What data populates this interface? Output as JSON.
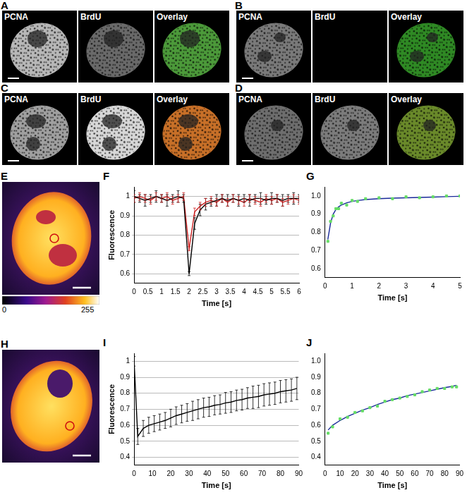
{
  "image_panels": [
    {
      "label": "A",
      "channels": [
        "PCNA",
        "BrdU",
        "Overlay"
      ]
    },
    {
      "label": "B",
      "channels": [
        "PCNA",
        "BrdU",
        "Overlay"
      ]
    },
    {
      "label": "C",
      "channels": [
        "PCNA",
        "BrdU",
        "Overlay"
      ]
    },
    {
      "label": "D",
      "channels": [
        "PCNA",
        "BrdU",
        "Overlay"
      ]
    }
  ],
  "fire_panels": [
    {
      "label": "E"
    },
    {
      "label": "H"
    }
  ],
  "colorbar": {
    "ticks": [
      0,
      255
    ]
  },
  "chart_data": [
    {
      "label": "F",
      "type": "line",
      "xlabel": "Time [s]",
      "ylabel": "Fluorescence",
      "xlim": [
        0,
        6
      ],
      "xticks": [
        0,
        0.5,
        1,
        1.5,
        2,
        2.5,
        3,
        3.5,
        4,
        4.5,
        5,
        5.5,
        6
      ],
      "ylim": [
        0.55,
        1.05
      ],
      "yticks": [
        0.6,
        0.7,
        0.8,
        0.9,
        1
      ],
      "grid": true,
      "x": [
        0,
        0.2,
        0.4,
        0.6,
        0.8,
        1,
        1.2,
        1.4,
        1.6,
        1.8,
        2,
        2.2,
        2.4,
        2.6,
        2.8,
        3,
        3.2,
        3.4,
        3.6,
        3.8,
        4,
        4.2,
        4.4,
        4.6,
        4.8,
        5,
        5.2,
        5.4,
        5.6,
        5.8,
        6
      ],
      "series": [
        {
          "color": "#000000",
          "values": [
            1.0,
            0.99,
            0.98,
            0.99,
            1.0,
            0.99,
            0.98,
            0.99,
            1.0,
            0.99,
            0.6,
            0.86,
            0.93,
            0.96,
            0.97,
            0.98,
            0.99,
            0.98,
            0.99,
            0.98,
            0.99,
            0.98,
            0.99,
            0.99,
            0.98,
            0.99,
            0.99,
            0.98,
            0.99,
            0.99,
            0.99
          ],
          "errors": [
            0.03,
            0.02,
            0.03,
            0.02,
            0.03,
            0.02,
            0.03,
            0.02,
            0.03,
            0.02,
            0.01,
            0.03,
            0.03,
            0.03,
            0.02,
            0.03,
            0.02,
            0.03,
            0.02,
            0.03,
            0.02,
            0.03,
            0.02,
            0.03,
            0.02,
            0.03,
            0.02,
            0.03,
            0.02,
            0.03,
            0.02
          ]
        },
        {
          "color": "#cc2222",
          "values": [
            0.99,
            1.0,
            0.99,
            0.98,
            1.0,
            0.99,
            1.0,
            0.98,
            0.99,
            1.0,
            0.73,
            0.92,
            0.95,
            0.97,
            0.98,
            0.97,
            0.99,
            0.97,
            0.99,
            0.98,
            0.97,
            0.99,
            0.98,
            0.97,
            0.99,
            0.98,
            0.99,
            0.97,
            0.98,
            0.99,
            0.98
          ],
          "errors": [
            0.02,
            0.02,
            0.02,
            0.02,
            0.02,
            0.02,
            0.02,
            0.02,
            0.02,
            0.02,
            0.01,
            0.02,
            0.02,
            0.02,
            0.02,
            0.02,
            0.02,
            0.02,
            0.02,
            0.02,
            0.02,
            0.02,
            0.02,
            0.02,
            0.02,
            0.02,
            0.02,
            0.02,
            0.02,
            0.02,
            0.02
          ]
        }
      ]
    },
    {
      "label": "G",
      "type": "scatter",
      "xlabel": "Time [s]",
      "xlim": [
        0,
        5
      ],
      "xticks": [
        0,
        1,
        2,
        3,
        4,
        5
      ],
      "ylim": [
        0.55,
        1.05
      ],
      "yticks": [
        0.6,
        0.7,
        0.8,
        0.9,
        {
          "value": 1,
          "label": "1.0"
        }
      ],
      "grid": false,
      "x": [
        0.1,
        0.2,
        0.3,
        0.4,
        0.5,
        0.6,
        0.8,
        1.0,
        1.2,
        1.5,
        2,
        2.5,
        3,
        3.5,
        4,
        4.5,
        5
      ],
      "series": [
        {
          "type": "scatter",
          "color": "#66dd66",
          "values": [
            0.75,
            0.86,
            0.89,
            0.93,
            0.93,
            0.96,
            0.95,
            0.975,
            0.97,
            0.985,
            0.99,
            0.985,
            0.995,
            0.99,
            0.995,
            1.0,
            1.0
          ]
        },
        {
          "type": "line",
          "color": "#1a2a9a",
          "values": [
            0.76,
            0.85,
            0.9,
            0.925,
            0.94,
            0.95,
            0.962,
            0.97,
            0.975,
            0.98,
            0.985,
            0.988,
            0.99,
            0.992,
            0.994,
            0.996,
            0.998
          ]
        }
      ]
    },
    {
      "label": "I",
      "type": "line",
      "xlabel": "Time [s]",
      "ylabel": "Fluorescence",
      "xlim": [
        0,
        90
      ],
      "xticks": [
        0,
        10,
        20,
        30,
        40,
        50,
        60,
        70,
        80,
        90
      ],
      "ylim": [
        0.35,
        1.05
      ],
      "yticks": [
        0.4,
        0.5,
        0.6,
        0.7,
        0.8,
        0.9,
        1
      ],
      "grid": true,
      "x": [
        0,
        2,
        5,
        8,
        11,
        14,
        17,
        20,
        23,
        26,
        29,
        32,
        35,
        38,
        41,
        44,
        47,
        50,
        53,
        56,
        59,
        62,
        65,
        68,
        71,
        74,
        77,
        80,
        83,
        86,
        89
      ],
      "series": [
        {
          "color": "#000000",
          "values": [
            1.0,
            0.53,
            0.58,
            0.6,
            0.61,
            0.62,
            0.63,
            0.645,
            0.66,
            0.67,
            0.68,
            0.69,
            0.7,
            0.71,
            0.715,
            0.725,
            0.73,
            0.74,
            0.745,
            0.755,
            0.76,
            0.77,
            0.775,
            0.78,
            0.79,
            0.795,
            0.8,
            0.81,
            0.815,
            0.82,
            0.83
          ],
          "errors": [
            0.03,
            0.05,
            0.05,
            0.05,
            0.05,
            0.05,
            0.05,
            0.055,
            0.055,
            0.055,
            0.055,
            0.06,
            0.06,
            0.06,
            0.06,
            0.06,
            0.06,
            0.065,
            0.065,
            0.065,
            0.065,
            0.065,
            0.07,
            0.07,
            0.07,
            0.07,
            0.07,
            0.07,
            0.07,
            0.07,
            0.07
          ]
        }
      ]
    },
    {
      "label": "J",
      "type": "scatter",
      "xlabel": "Time [s]",
      "xlim": [
        0,
        90
      ],
      "xticks": [
        0,
        10,
        20,
        30,
        40,
        50,
        60,
        70,
        80,
        90
      ],
      "ylim": [
        0.35,
        1.05
      ],
      "yticks": [
        0.4,
        0.5,
        0.6,
        0.7,
        0.8,
        0.9,
        {
          "value": 1,
          "label": "1.0"
        }
      ],
      "grid": false,
      "x": [
        2,
        5,
        10,
        15,
        20,
        25,
        30,
        35,
        40,
        45,
        50,
        55,
        60,
        65,
        70,
        75,
        80,
        85,
        88
      ],
      "series": [
        {
          "type": "scatter",
          "color": "#66dd66",
          "values": [
            0.55,
            0.59,
            0.64,
            0.65,
            0.68,
            0.69,
            0.71,
            0.72,
            0.75,
            0.76,
            0.77,
            0.78,
            0.79,
            0.81,
            0.82,
            0.83,
            0.83,
            0.84,
            0.84
          ]
        },
        {
          "type": "line",
          "color": "#1a2a9a",
          "values": [
            0.57,
            0.6,
            0.63,
            0.655,
            0.675,
            0.695,
            0.71,
            0.73,
            0.745,
            0.76,
            0.77,
            0.785,
            0.795,
            0.805,
            0.815,
            0.825,
            0.835,
            0.843,
            0.85
          ]
        }
      ]
    }
  ]
}
